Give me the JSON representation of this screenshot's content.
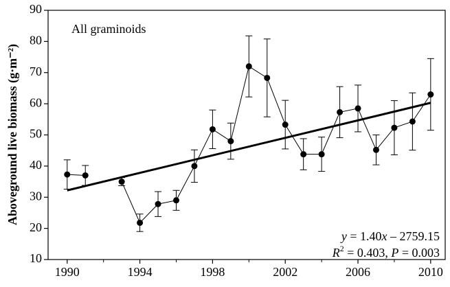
{
  "chart_data": {
    "type": "line",
    "ylabel": "Aboveground live biomass (g·m⁻²)",
    "x": [
      1990,
      1991,
      1992,
      1993,
      1994,
      1995,
      1996,
      1997,
      1998,
      1999,
      2000,
      2001,
      2002,
      2003,
      2004,
      2005,
      2006,
      2007,
      2008,
      2009,
      2010
    ],
    "series": [
      {
        "name": "All graminoids",
        "color": "#000000",
        "values": [
          37.3,
          37,
          null,
          35,
          21.8,
          27.8,
          29,
          40,
          51.8,
          48,
          72,
          68.3,
          53.3,
          43.8,
          43.8,
          57.3,
          58.5,
          45.2,
          52.3,
          54.3,
          63
        ],
        "errors": [
          4.7,
          3.2,
          null,
          1.3,
          2.8,
          4,
          3.2,
          5.2,
          6.2,
          5.8,
          9.8,
          12.5,
          7.8,
          5,
          5.5,
          8.2,
          7.5,
          4.8,
          8.7,
          9.2,
          11.5
        ]
      }
    ],
    "trend": {
      "x": [
        1990,
        2010
      ],
      "values": [
        32.2,
        60.3
      ],
      "color": "#000000"
    },
    "equation": [
      {
        "text": "y",
        "italic": true
      },
      {
        "text": " = 1.40"
      },
      {
        "text": "x",
        "italic": true
      },
      {
        "text": " – 2759.15"
      }
    ],
    "stats": [
      {
        "text": "R",
        "italic": true
      },
      {
        "text": "2",
        "sup": true
      },
      {
        "text": " = 0.403, "
      },
      {
        "text": "P",
        "italic": true
      },
      {
        "text": " = 0.003"
      }
    ],
    "xlim": [
      1988.95,
      2010.8
    ],
    "ylim": [
      10,
      90
    ],
    "xticks": [
      1990,
      1994,
      1998,
      2002,
      2006,
      2010
    ],
    "xminorticks": [
      1992,
      1996,
      2000,
      2004,
      2008
    ],
    "yticks": [
      10,
      20,
      30,
      40,
      50,
      60,
      70,
      80,
      90
    ]
  }
}
